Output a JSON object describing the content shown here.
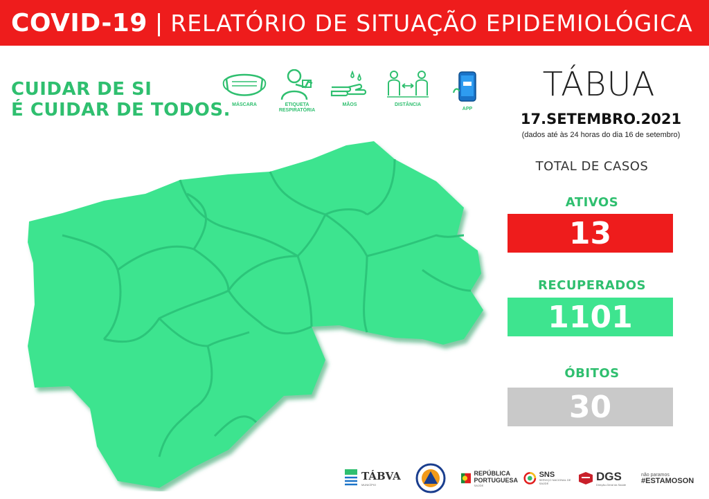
{
  "header": {
    "title_bold": "COVID-19",
    "separator": "|",
    "title_light": "RELATÓRIO DE SITUAÇÃO EPIDEMIOLÓGICA"
  },
  "slogan": {
    "line1": "CUIDAR DE SI",
    "line2": "É CUIDAR DE TODOS."
  },
  "icons": [
    {
      "name": "mask-icon",
      "label": "MÁSCARA"
    },
    {
      "name": "respiratory-etiquette-icon",
      "label": "ETIQUETA RESPIRATÓRIA"
    },
    {
      "name": "hands-icon",
      "label": "MÃOS"
    },
    {
      "name": "distance-icon",
      "label": "DISTÂNCIA"
    },
    {
      "name": "app-icon",
      "label": "APP"
    }
  ],
  "place": "TÁBUA",
  "date": "17.SETEMBRO.2021",
  "note": "(dados até às 24 horas do dia 16 de setembro)",
  "total_label": "TOTAL DE CASOS",
  "stats": {
    "active_label": "ATIVOS",
    "active_value": "13",
    "recovered_label": "RECUPERADOS",
    "recovered_value": "1101",
    "deaths_label": "ÓBITOS",
    "deaths_value": "30"
  },
  "colors": {
    "header_red": "#ee1c1c",
    "brand_green": "#2fbf6f",
    "map_green": "#3ee48f",
    "deaths_grey": "#c9c9c9"
  },
  "footer": {
    "tabua_logo": "TÁBVA",
    "tabua_sub": "MUNICÍPIO",
    "republica_line1": "REPÚBLICA",
    "republica_line2": "PORTUGUESA",
    "republica_sub": "SAÚDE",
    "sns": "SNS",
    "sns_sub": "SERVIÇO NACIONAL DE SAÚDE",
    "dgs": "DGS",
    "dgs_sub": "Direção-Geral da Saúde",
    "estamos_top": "não paramos",
    "estamos": "#ESTAMOSON"
  }
}
